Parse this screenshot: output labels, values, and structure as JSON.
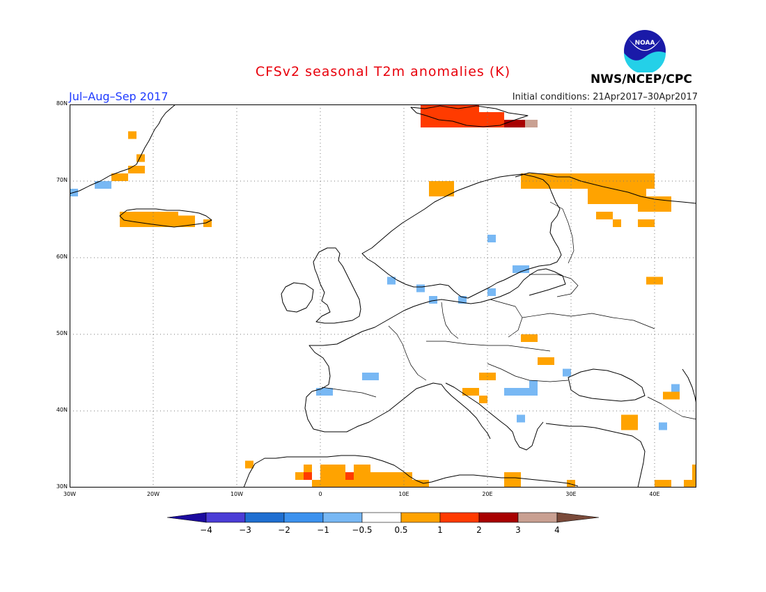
{
  "title": "CFSv2 seasonal T2m anomalies (K)",
  "period": "Jul–Aug–Sep 2017",
  "initial_conditions": "Initial conditions: 21Apr2017–30Apr2017",
  "organization": "NWS/NCEP/CPC",
  "logo_text": "NOAA",
  "map": {
    "region": "Europe",
    "lon_range": [
      -30,
      45
    ],
    "lat_range": [
      30,
      80
    ],
    "lat_ticks": [
      {
        "v": 80,
        "t": "80N"
      },
      {
        "v": 70,
        "t": "70N"
      },
      {
        "v": 60,
        "t": "60N"
      },
      {
        "v": 50,
        "t": "50N"
      },
      {
        "v": 40,
        "t": "40N"
      },
      {
        "v": 30,
        "t": "30N"
      }
    ],
    "lon_ticks": [
      {
        "v": -30,
        "t": "30W"
      },
      {
        "v": -20,
        "t": "20W"
      },
      {
        "v": -10,
        "t": "10W"
      },
      {
        "v": 0,
        "t": "0"
      },
      {
        "v": 10,
        "t": "10E"
      },
      {
        "v": 20,
        "t": "20E"
      },
      {
        "v": 30,
        "t": "30E"
      },
      {
        "v": 40,
        "t": "40E"
      }
    ],
    "anomaly_cells": [
      {
        "lon": -30,
        "lat": 68,
        "lon2": -29,
        "lat2": 69,
        "level": "neg1"
      },
      {
        "lon": -27,
        "lat": 69,
        "lon2": -25,
        "lat2": 70,
        "level": "neg1"
      },
      {
        "lon": -25,
        "lat": 70,
        "lon2": -23,
        "lat2": 71,
        "level": "pos1"
      },
      {
        "lon": -23,
        "lat": 71,
        "lon2": -21,
        "lat2": 72,
        "level": "pos1"
      },
      {
        "lon": -22,
        "lat": 72.5,
        "lon2": -21,
        "lat2": 73.5,
        "level": "pos1"
      },
      {
        "lon": -23,
        "lat": 75.5,
        "lon2": -22,
        "lat2": 76.5,
        "level": "pos1"
      },
      {
        "lon": -24,
        "lat": 64,
        "lon2": -22,
        "lat2": 66,
        "level": "pos1"
      },
      {
        "lon": -22,
        "lat": 64,
        "lon2": -17,
        "lat2": 66,
        "level": "pos1"
      },
      {
        "lon": -17,
        "lat": 64,
        "lon2": -15,
        "lat2": 65.5,
        "level": "pos1"
      },
      {
        "lon": -14,
        "lat": 64,
        "lon2": -13,
        "lat2": 65,
        "level": "pos1"
      },
      {
        "lon": 12,
        "lat": 77,
        "lon2": 19,
        "lat2": 80,
        "level": "pos2"
      },
      {
        "lon": 19,
        "lat": 77,
        "lon2": 22,
        "lat2": 79,
        "level": "pos2"
      },
      {
        "lon": 22,
        "lat": 77,
        "lon2": 25,
        "lat2": 78,
        "level": "pos3"
      },
      {
        "lon": 24.5,
        "lat": 77,
        "lon2": 26,
        "lat2": 78,
        "level": "pos4"
      },
      {
        "lon": 13,
        "lat": 68,
        "lon2": 16,
        "lat2": 70,
        "level": "pos1"
      },
      {
        "lon": 24,
        "lat": 69,
        "lon2": 40,
        "lat2": 71,
        "level": "pos1"
      },
      {
        "lon": 32,
        "lat": 67,
        "lon2": 39,
        "lat2": 69,
        "level": "pos1"
      },
      {
        "lon": 38,
        "lat": 66,
        "lon2": 42,
        "lat2": 68,
        "level": "pos1"
      },
      {
        "lon": 33,
        "lat": 65,
        "lon2": 35,
        "lat2": 66,
        "level": "pos1"
      },
      {
        "lon": 35,
        "lat": 64,
        "lon2": 36,
        "lat2": 65,
        "level": "pos1"
      },
      {
        "lon": 38,
        "lat": 64,
        "lon2": 40,
        "lat2": 65,
        "level": "pos1"
      },
      {
        "lon": 20,
        "lat": 62,
        "lon2": 21,
        "lat2": 63,
        "level": "neg1"
      },
      {
        "lon": 23,
        "lat": 58,
        "lon2": 25,
        "lat2": 59,
        "level": "neg1"
      },
      {
        "lon": 8,
        "lat": 56.5,
        "lon2": 9,
        "lat2": 57.5,
        "level": "neg1"
      },
      {
        "lon": 11.5,
        "lat": 55.5,
        "lon2": 12.5,
        "lat2": 56.5,
        "level": "neg1"
      },
      {
        "lon": 13,
        "lat": 54,
        "lon2": 14,
        "lat2": 55,
        "level": "neg1"
      },
      {
        "lon": 16.5,
        "lat": 54,
        "lon2": 17.5,
        "lat2": 55,
        "level": "neg1"
      },
      {
        "lon": 20,
        "lat": 55,
        "lon2": 21,
        "lat2": 56,
        "level": "neg1"
      },
      {
        "lon": 39,
        "lat": 56.5,
        "lon2": 41,
        "lat2": 57.5,
        "level": "pos1"
      },
      {
        "lon": 24,
        "lat": 49,
        "lon2": 26,
        "lat2": 50,
        "level": "pos1"
      },
      {
        "lon": 26,
        "lat": 46,
        "lon2": 28,
        "lat2": 47,
        "level": "pos1"
      },
      {
        "lon": -0.5,
        "lat": 42,
        "lon2": 1.5,
        "lat2": 43,
        "level": "neg1"
      },
      {
        "lon": 5,
        "lat": 44,
        "lon2": 7,
        "lat2": 45,
        "level": "neg1"
      },
      {
        "lon": 19,
        "lat": 44,
        "lon2": 21,
        "lat2": 45,
        "level": "pos1"
      },
      {
        "lon": 17,
        "lat": 42,
        "lon2": 19,
        "lat2": 43,
        "level": "pos1"
      },
      {
        "lon": 19,
        "lat": 41,
        "lon2": 20,
        "lat2": 42,
        "level": "pos1"
      },
      {
        "lon": 22,
        "lat": 42,
        "lon2": 26,
        "lat2": 43,
        "level": "neg1"
      },
      {
        "lon": 25,
        "lat": 43,
        "lon2": 26,
        "lat2": 44,
        "level": "neg1"
      },
      {
        "lon": 29,
        "lat": 44.5,
        "lon2": 30,
        "lat2": 45.5,
        "level": "neg1"
      },
      {
        "lon": 23.5,
        "lat": 38.5,
        "lon2": 24.5,
        "lat2": 39.5,
        "level": "neg1"
      },
      {
        "lon": 42,
        "lat": 42.5,
        "lon2": 43,
        "lat2": 43.5,
        "level": "neg1"
      },
      {
        "lon": 41,
        "lat": 41.5,
        "lon2": 43,
        "lat2": 42.5,
        "level": "pos1"
      },
      {
        "lon": 36,
        "lat": 37.5,
        "lon2": 38,
        "lat2": 39.5,
        "level": "pos1"
      },
      {
        "lon": 40.5,
        "lat": 37.5,
        "lon2": 41.5,
        "lat2": 38.5,
        "level": "neg1"
      },
      {
        "lon": -9,
        "lat": 32.5,
        "lon2": -8,
        "lat2": 33.5,
        "level": "pos1"
      },
      {
        "lon": -2,
        "lat": 32,
        "lon2": -1,
        "lat2": 33,
        "level": "pos1"
      },
      {
        "lon": -3,
        "lat": 31,
        "lon2": -1,
        "lat2": 32,
        "level": "pos1"
      },
      {
        "lon": -2,
        "lat": 31,
        "lon2": -1,
        "lat2": 32,
        "level": "pos2"
      },
      {
        "lon": 0,
        "lat": 31,
        "lon2": 3,
        "lat2": 33,
        "level": "pos1"
      },
      {
        "lon": -1,
        "lat": 30,
        "lon2": 11,
        "lat2": 31,
        "level": "pos1"
      },
      {
        "lon": 3,
        "lat": 31,
        "lon2": 4,
        "lat2": 32,
        "level": "pos2"
      },
      {
        "lon": 4,
        "lat": 31,
        "lon2": 6,
        "lat2": 33,
        "level": "pos1"
      },
      {
        "lon": 6,
        "lat": 30,
        "lon2": 11,
        "lat2": 32,
        "level": "pos1"
      },
      {
        "lon": 11,
        "lat": 30,
        "lon2": 13,
        "lat2": 31,
        "level": "pos1"
      },
      {
        "lon": 22,
        "lat": 30,
        "lon2": 24,
        "lat2": 32,
        "level": "pos1"
      },
      {
        "lon": 29.5,
        "lat": 30,
        "lon2": 30.5,
        "lat2": 31,
        "level": "pos1"
      },
      {
        "lon": 40,
        "lat": 30,
        "lon2": 42,
        "lat2": 31,
        "level": "pos1"
      },
      {
        "lon": 43.5,
        "lat": 30,
        "lon2": 45,
        "lat2": 31,
        "level": "pos1"
      },
      {
        "lon": 44.5,
        "lat": 31,
        "lon2": 45,
        "lat2": 33,
        "level": "pos1"
      }
    ]
  },
  "colorbar": {
    "labels": [
      "−4",
      "−3",
      "−2",
      "−1",
      "−0.5",
      "0.5",
      "1",
      "2",
      "3",
      "4"
    ],
    "colors": {
      "neg5": "#1c0b9e",
      "neg4": "#4b3dd6",
      "neg3": "#1f6fd1",
      "neg2": "#3c92ee",
      "neg1": "#78b8f4",
      "zero": "#ffffff",
      "pos1": "#ffa300",
      "pos2": "#ff3b00",
      "pos3": "#a80000",
      "pos4": "#c9a092",
      "pos5": "#7a4a3a"
    }
  }
}
